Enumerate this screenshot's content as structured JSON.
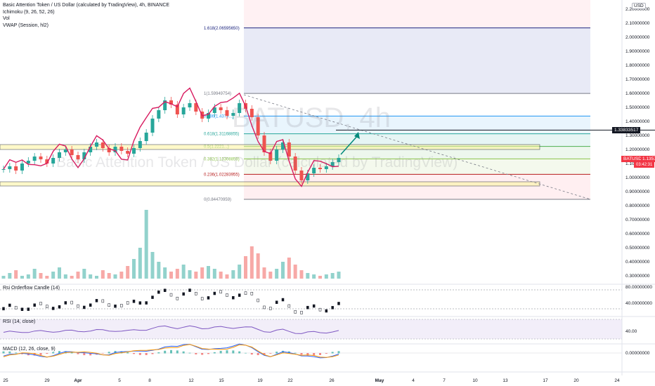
{
  "legend": {
    "title": "Basic Attention Token / US Dollar (calculated by TradingView), 4h, BINANCE",
    "ichimoku": "Ichimoku (9, 26, 52, 26)",
    "vol": "Vol",
    "vwap": "VWAP (Session, hl2)"
  },
  "watermark": {
    "symbol": "BATUSD, 4h",
    "name": "Basic Attention Token / US Dollar (calculated by TradingView)"
  },
  "currency_badge": "USD",
  "price_tags": {
    "level": "1.33833517",
    "symbol": "BATUSD",
    "last": "1.13575610",
    "countdown": "03:42:31"
  },
  "panes": {
    "rsi_orderflow": "Rsi Orderflow Candle (14)",
    "rsi": "RSI (14, close)",
    "macd": "MACD (12, 26, close, 9)"
  },
  "colors": {
    "up": "#26a69a",
    "down": "#ef5350",
    "accent": "#2962ff",
    "fib_blue": "#1a237e",
    "level_green": "#4caf50",
    "level_blue": "#2196f3",
    "vwap": "#d81b60",
    "rsi": "#7e57c2"
  },
  "chart_data": [
    {
      "type": "line",
      "title": "Basic Attention Token / US Dollar (calculated by TradingView), 4h, BINANCE",
      "x_ticks": [
        "25",
        "29",
        "Apr",
        "5",
        "8",
        "12",
        "15",
        "19",
        "22",
        "26",
        "May",
        "4",
        "7",
        "10",
        "13",
        "17",
        "20",
        "24"
      ],
      "y_ticks": [
        "2.20000000",
        "2.10000000",
        "2.00000000",
        "1.90000000",
        "1.80000000",
        "1.70000000",
        "1.60000000",
        "1.50000000",
        "1.40000000",
        "1.30000000",
        "1.20000000",
        "1.10000000",
        "1.00000000",
        "0.90000000",
        "0.80000000",
        "0.70000000",
        "0.60000000",
        "0.50000000",
        "0.40000000",
        "0.30000000"
      ],
      "fib_levels": [
        {
          "label": "1.618(2.06595650)",
          "value": 2.0659565
        },
        {
          "label": "1(1.59949754)",
          "value": 1.59949754
        },
        {
          "label": "0.786(1.4379...)",
          "value": 1.4379
        },
        {
          "label": "0.618(1.31168855)",
          "value": 1.31168855
        },
        {
          "label": "0.5(1.2221...)",
          "value": 1.2221
        },
        {
          "label": "0.382(1.13308859)",
          "value": 1.13308859
        },
        {
          "label": "0.236(1.02283955)",
          "value": 1.02283955
        },
        {
          "label": "0(0.84470959)",
          "value": 0.84470959
        }
      ],
      "series": [
        {
          "name": "BATUSD",
          "values": [
            1.06,
            1.08,
            1.05,
            1.1,
            1.12,
            1.15,
            1.13,
            1.1,
            1.14,
            1.18,
            1.2,
            1.16,
            1.13,
            1.18,
            1.22,
            1.25,
            1.21,
            1.18,
            1.22,
            1.19,
            1.17,
            1.21,
            1.26,
            1.32,
            1.42,
            1.48,
            1.55,
            1.52,
            1.45,
            1.5,
            1.53,
            1.47,
            1.42,
            1.46,
            1.5,
            1.48,
            1.44,
            1.46,
            1.53,
            1.49,
            1.43,
            1.3,
            1.18,
            1.12,
            1.2,
            1.25,
            1.15,
            1.05,
            0.98,
            1.03,
            1.07,
            1.06,
            1.08,
            1.11,
            1.14
          ]
        }
      ],
      "volume": [
        0.3,
        0.32,
        0.34,
        0.3,
        0.31,
        0.35,
        0.32,
        0.3,
        0.33,
        0.36,
        0.31,
        0.3,
        0.33,
        0.35,
        0.31,
        0.3,
        0.34,
        0.32,
        0.31,
        0.33,
        0.37,
        0.42,
        0.5,
        0.77,
        0.47,
        0.4,
        0.36,
        0.33,
        0.35,
        0.38,
        0.34,
        0.33,
        0.36,
        0.37,
        0.35,
        0.33,
        0.31,
        0.34,
        0.38,
        0.44,
        0.51,
        0.46,
        0.36,
        0.33,
        0.35,
        0.4,
        0.43,
        0.38,
        0.34,
        0.32,
        0.31,
        0.3,
        0.31,
        0.32,
        0.33
      ],
      "rsi_orderflow_ticks": [
        "80.00000000",
        "40.00000000"
      ],
      "rsi_ticks": [
        "40.00"
      ],
      "macd_ticks": [
        "0.00000000"
      ]
    }
  ]
}
